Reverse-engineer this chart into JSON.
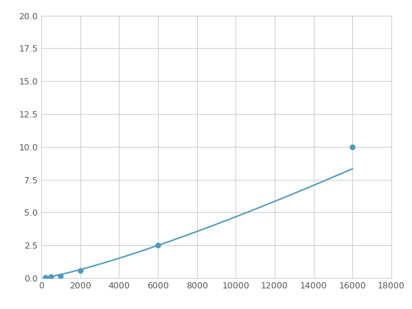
{
  "x": [
    200,
    500,
    1000,
    2000,
    6000,
    16000
  ],
  "y": [
    0.05,
    0.12,
    0.18,
    0.6,
    2.5,
    10.0
  ],
  "line_color": "#4d9abf",
  "marker_color": "#4d9abf",
  "xlim": [
    0,
    18000
  ],
  "ylim": [
    0,
    20.0
  ],
  "xticks": [
    0,
    2000,
    4000,
    6000,
    8000,
    10000,
    12000,
    14000,
    16000,
    18000
  ],
  "yticks": [
    0.0,
    2.5,
    5.0,
    7.5,
    10.0,
    12.5,
    15.0,
    17.5,
    20.0
  ],
  "grid_color": "#d0d0d0",
  "background_color": "#ffffff",
  "marker_size": 5,
  "line_width": 1.5,
  "figsize": [
    6.0,
    4.5
  ],
  "dpi": 100
}
